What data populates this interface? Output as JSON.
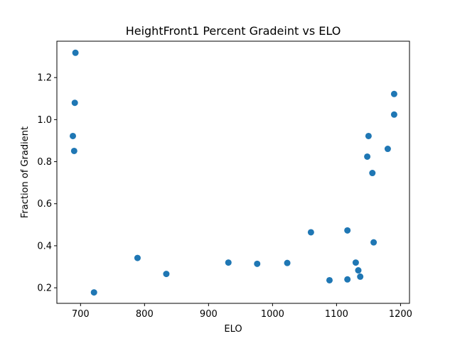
{
  "chart_data": {
    "type": "scatter",
    "title": "HeightFront1 Percent Gradeint vs ELO",
    "xlabel": "ELO",
    "ylabel": "Fraction of Gradient",
    "xlim": [
      663,
      1214
    ],
    "ylim": [
      0.126,
      1.373
    ],
    "xticks": [
      700,
      800,
      900,
      1000,
      1100,
      1200
    ],
    "yticks": [
      0.2,
      0.4,
      0.6,
      0.8,
      1.0,
      1.2
    ],
    "xtick_labels": [
      "700",
      "800",
      "900",
      "1000",
      "1100",
      "1200"
    ],
    "ytick_labels": [
      "0.2",
      "0.4",
      "0.6",
      "0.8",
      "1.0",
      "1.2"
    ],
    "grid": false,
    "marker_color": "#1f77b4",
    "points": [
      {
        "x": 692,
        "y": 1.318
      },
      {
        "x": 691,
        "y": 1.08
      },
      {
        "x": 688,
        "y": 0.922
      },
      {
        "x": 690,
        "y": 0.851
      },
      {
        "x": 721,
        "y": 0.178
      },
      {
        "x": 789,
        "y": 0.342
      },
      {
        "x": 834,
        "y": 0.266
      },
      {
        "x": 931,
        "y": 0.32
      },
      {
        "x": 976,
        "y": 0.314
      },
      {
        "x": 1023,
        "y": 0.318
      },
      {
        "x": 1060,
        "y": 0.464
      },
      {
        "x": 1089,
        "y": 0.236
      },
      {
        "x": 1117,
        "y": 0.473
      },
      {
        "x": 1117,
        "y": 0.24
      },
      {
        "x": 1130,
        "y": 0.32
      },
      {
        "x": 1134,
        "y": 0.283
      },
      {
        "x": 1137,
        "y": 0.253
      },
      {
        "x": 1148,
        "y": 0.824
      },
      {
        "x": 1150,
        "y": 0.922
      },
      {
        "x": 1156,
        "y": 0.746
      },
      {
        "x": 1158,
        "y": 0.416
      },
      {
        "x": 1180,
        "y": 0.861
      },
      {
        "x": 1190,
        "y": 1.122
      },
      {
        "x": 1190,
        "y": 1.024
      }
    ]
  }
}
